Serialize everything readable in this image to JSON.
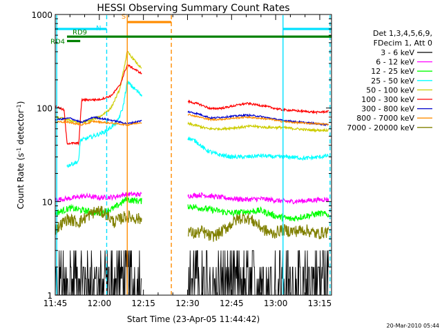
{
  "chart_data": {
    "type": "line",
    "title": "HESSI Observing Summary Count Rates",
    "xlabel": "Start Time (23-Apr-05 11:44:42)",
    "ylabel_parts": [
      "Count Rate (s",
      "-1",
      " detector",
      "-1",
      ")"
    ],
    "yscale": "log",
    "ylim": [
      1,
      1000
    ],
    "xlim_min": [
      705,
      799
    ],
    "xtick_labels": [
      "11:45",
      "12:00",
      "12:15",
      "12:30",
      "12:45",
      "13:00",
      "13:15"
    ],
    "xtick_values_min": [
      705,
      720,
      735,
      750,
      765,
      780,
      795
    ],
    "ytick_labels": [
      "1",
      "10",
      "100",
      "1000"
    ],
    "ytick_values": [
      1,
      10,
      100,
      1000
    ],
    "data_gap_min": [
      734.5,
      750
    ],
    "markers": [
      {
        "label": "N",
        "color": "#00e0ff",
        "style": "solid",
        "t": 705.5
      },
      {
        "label": "",
        "color": "#00e0ff",
        "style": "dashed",
        "t": 722.5
      },
      {
        "label": "",
        "color": "#00e0ff",
        "style": "solid",
        "t": 782.5
      },
      {
        "label": "",
        "color": "#00e0ff",
        "style": "dashed",
        "t": 798.5
      },
      {
        "label": "S",
        "color": "#ff8c00",
        "style": "solid",
        "t": 729.5
      },
      {
        "label": "",
        "color": "#ff8c00",
        "style": "dashed",
        "t": 744.5
      }
    ],
    "flag_bars": [
      {
        "label": "N",
        "color": "#00e0ff",
        "t0": 705,
        "t1": 722.5,
        "level": 700
      },
      {
        "label": "",
        "color": "#00e0ff",
        "t0": 782.5,
        "t1": 799,
        "level": 700
      },
      {
        "label": "S",
        "color": "#ff8c00",
        "t0": 729.5,
        "t1": 744.5,
        "level": 830
      },
      {
        "label": "RD9",
        "color": "#008000",
        "t0": 709,
        "t1": 799,
        "level": 580
      },
      {
        "label": "RD4",
        "color": "#008000",
        "t0": 709,
        "t1": 713.5,
        "level": 520
      }
    ],
    "legend_header": [
      "Det 1,3,4,5,6,9,",
      "FDecim 1, Att 0"
    ],
    "series": [
      {
        "name": "3 - 6 keV",
        "color": "#000000",
        "t": [
          705,
          708,
          711,
          714,
          717,
          720,
          723,
          726,
          729,
          750,
          754,
          758,
          762,
          766,
          770,
          774,
          778,
          782,
          786,
          790,
          794,
          798
        ],
        "values": [
          1.5,
          1.6,
          2.0,
          1.8,
          2.2,
          1.7,
          1.4,
          2.2,
          1.5,
          1.6,
          1.8,
          2.2,
          1.7,
          1.4,
          1.6,
          1.9,
          2.1,
          1.7,
          1.5,
          1.6,
          1.5,
          1.4
        ]
      },
      {
        "name": "6 - 12 keV",
        "color": "#ff00ff",
        "t": [
          705,
          710,
          715,
          720,
          725,
          729,
          750,
          755,
          760,
          765,
          770,
          775,
          780,
          785,
          790,
          795,
          798
        ],
        "values": [
          10.5,
          10.8,
          11.5,
          11.0,
          11.2,
          12.0,
          11.5,
          11.8,
          11.2,
          10.8,
          10.5,
          10.7,
          10.3,
          10.0,
          10.2,
          10.5,
          10.6
        ]
      },
      {
        "name": "12 - 25 keV",
        "color": "#00ff00",
        "t": [
          705,
          710,
          715,
          720,
          725,
          729,
          750,
          755,
          760,
          765,
          770,
          775,
          780,
          785,
          790,
          795,
          798
        ],
        "values": [
          7.5,
          8.5,
          8.0,
          7.5,
          8.5,
          10.5,
          9.0,
          8.5,
          8.0,
          7.5,
          7.8,
          8.0,
          7.0,
          6.5,
          7.0,
          7.5,
          7.2
        ]
      },
      {
        "name": "25 - 50 keV",
        "color": "#00ffff",
        "t": [
          709,
          713,
          713.5,
          718,
          722,
          726,
          728,
          729.5,
          750,
          753,
          756,
          760,
          765,
          770,
          775,
          780,
          785,
          790,
          795,
          798
        ],
        "values": [
          24,
          27,
          45,
          50,
          56,
          70,
          100,
          190,
          48,
          44,
          36,
          32,
          30,
          30,
          31,
          30,
          30,
          29,
          30,
          31
        ]
      },
      {
        "name": "50 - 100 keV",
        "color": "#cccc00",
        "t": [
          705,
          709,
          713,
          716,
          720,
          724,
          727,
          729.5,
          750,
          753,
          757,
          762,
          767,
          772,
          777,
          782,
          787,
          792,
          798
        ],
        "values": [
          80,
          75,
          70,
          72,
          80,
          100,
          160,
          400,
          68,
          65,
          60,
          60,
          62,
          64,
          62,
          62,
          60,
          58,
          58
        ]
      },
      {
        "name": "100 - 300 keV",
        "color": "#ff0000",
        "t": [
          705,
          708,
          709,
          713,
          714,
          720,
          724,
          727,
          729.5,
          750,
          754,
          758,
          762,
          766,
          770,
          774,
          778,
          782,
          786,
          790,
          794,
          798
        ],
        "values": [
          105,
          95,
          42,
          42,
          122,
          123,
          135,
          175,
          290,
          118,
          110,
          98,
          100,
          106,
          112,
          108,
          102,
          96,
          94,
          92,
          90,
          92
        ]
      },
      {
        "name": "300 - 800 keV",
        "color": "#0000cc",
        "t": [
          705,
          710,
          714,
          718,
          722,
          726,
          729.5,
          750,
          754,
          758,
          762,
          766,
          770,
          774,
          778,
          782,
          786,
          790,
          794,
          798
        ],
        "values": [
          75,
          78,
          70,
          80,
          76,
          72,
          68,
          92,
          86,
          78,
          80,
          82,
          84,
          82,
          78,
          74,
          72,
          70,
          68,
          66
        ]
      },
      {
        "name": "800 - 7000 keV",
        "color": "#ff8c00",
        "t": [
          705,
          710,
          714,
          718,
          722,
          726,
          729.5,
          750,
          754,
          758,
          762,
          766,
          770,
          774,
          778,
          782,
          786,
          790,
          794,
          798
        ],
        "values": [
          72,
          70,
          66,
          72,
          70,
          68,
          66,
          86,
          80,
          75,
          76,
          78,
          80,
          78,
          76,
          72,
          70,
          69,
          68,
          67
        ]
      },
      {
        "name": "7000 - 20000 keV",
        "color": "#808000",
        "t": [
          705,
          709,
          713,
          716,
          719,
          722,
          725,
          729,
          750,
          752,
          755,
          758,
          761,
          764,
          767,
          770,
          773,
          776,
          779,
          782,
          786,
          790,
          794,
          798
        ],
        "values": [
          5.0,
          6.5,
          6.0,
          7.0,
          8.0,
          7.5,
          6.0,
          7.0,
          5.0,
          4.5,
          4.8,
          4.2,
          4.6,
          5.5,
          6.5,
          6.8,
          6.0,
          5.0,
          4.5,
          5.0,
          4.8,
          5.0,
          4.5,
          4.8
        ]
      }
    ]
  },
  "timestamp": "20-Mar-2010 05:44"
}
